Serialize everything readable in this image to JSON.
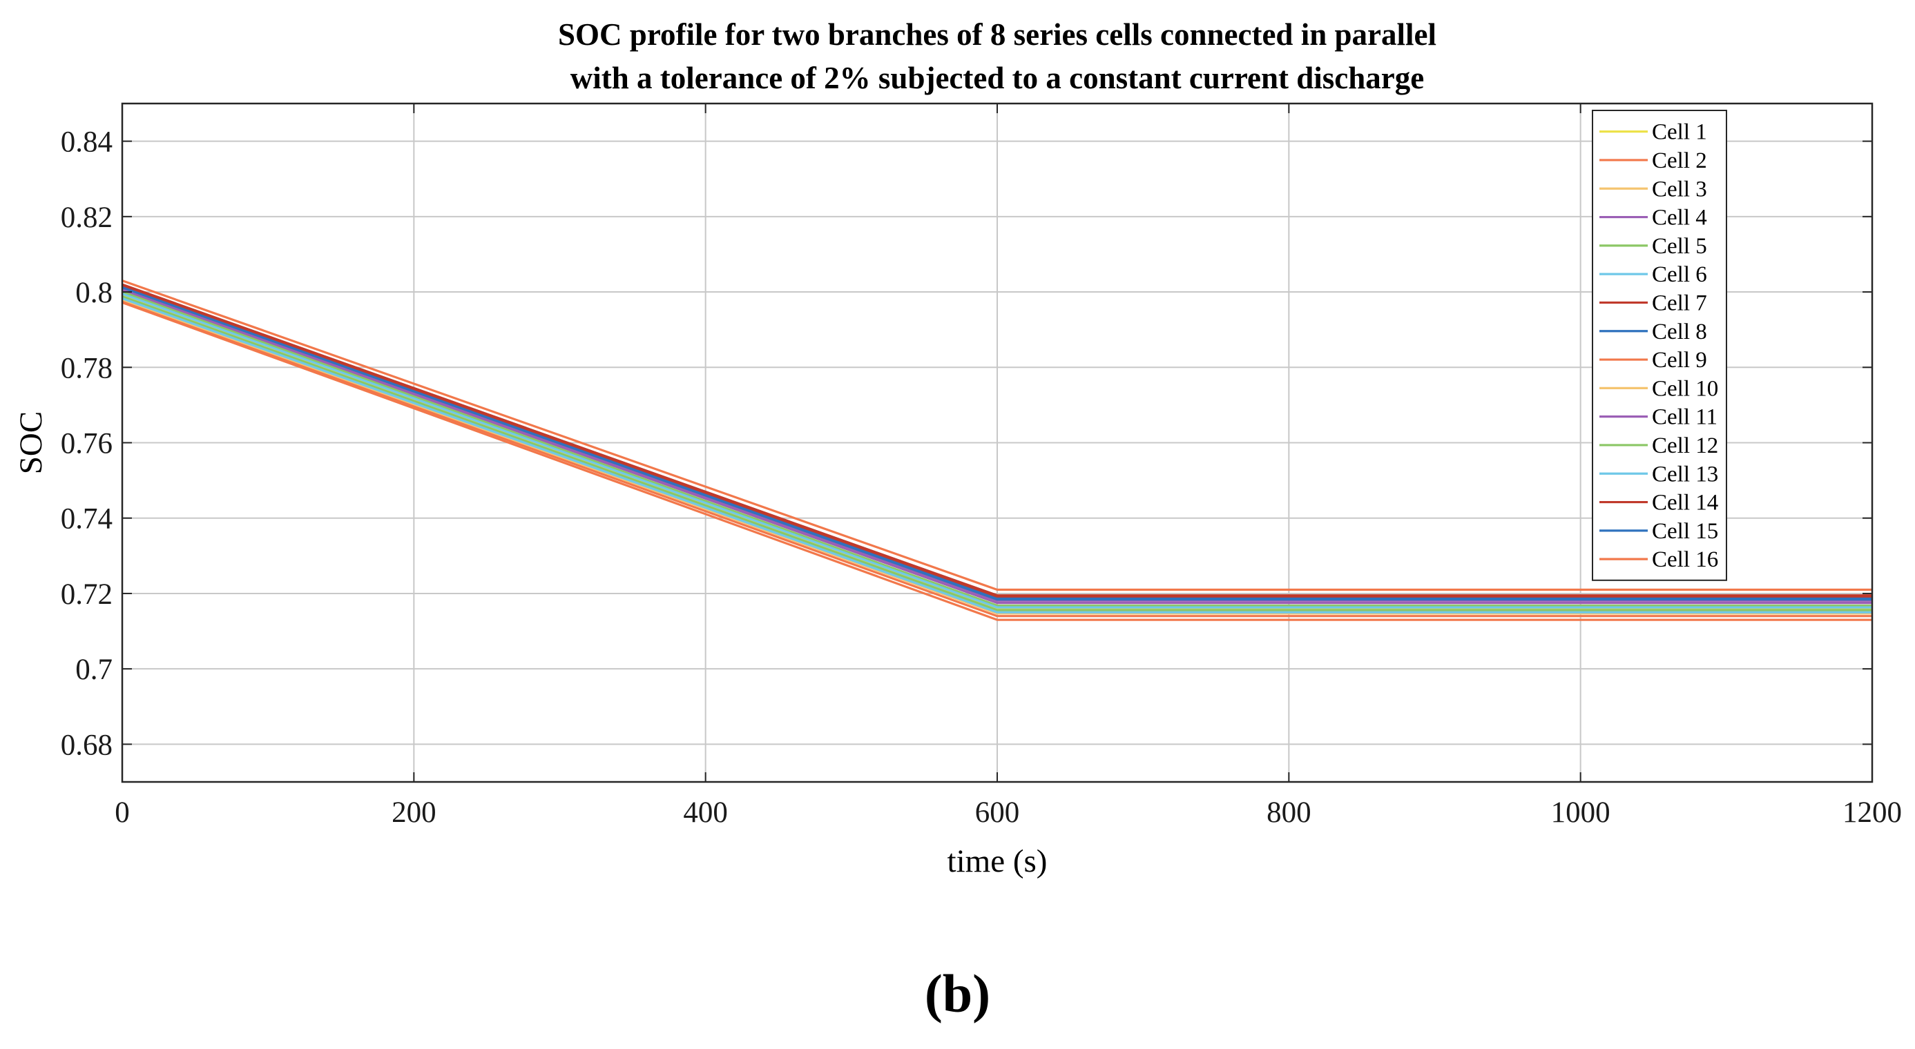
{
  "chart_data": {
    "type": "line",
    "title": [
      "SOC profile for two branches of 8 series cells connected in parallel",
      "with a tolerance of 2% subjected to a constant current discharge"
    ],
    "xlabel": "time (s)",
    "ylabel": "SOC",
    "xlim": [
      0,
      1200
    ],
    "ylim": [
      0.67,
      0.85
    ],
    "xticks": [
      0,
      200,
      400,
      600,
      800,
      1000,
      1200
    ],
    "xtick_labels": [
      "0",
      "200",
      "400",
      "600",
      "800",
      "1000",
      "1200"
    ],
    "yticks": [
      0.68,
      0.7,
      0.72,
      0.74,
      0.76,
      0.78,
      0.8,
      0.82,
      0.84
    ],
    "ytick_labels": [
      "0.68",
      "0.7",
      "0.72",
      "0.74",
      "0.76",
      "0.78",
      "0.8",
      "0.82",
      "0.84"
    ],
    "grid": true,
    "legend_position": "top-right",
    "series": [
      {
        "name": "Cell 1",
        "color": "#EDE24A",
        "x": [
          0,
          600,
          1200
        ],
        "y": [
          0.799,
          0.716,
          0.716
        ]
      },
      {
        "name": "Cell 2",
        "color": "#F2784B",
        "x": [
          0,
          600,
          1200
        ],
        "y": [
          0.7975,
          0.714,
          0.714
        ]
      },
      {
        "name": "Cell 3",
        "color": "#F5C470",
        "x": [
          0,
          600,
          1200
        ],
        "y": [
          0.7985,
          0.7152,
          0.7152
        ]
      },
      {
        "name": "Cell 4",
        "color": "#9B5FB5",
        "x": [
          0,
          600,
          1200
        ],
        "y": [
          0.8005,
          0.7175,
          0.7175
        ]
      },
      {
        "name": "Cell 5",
        "color": "#8BC765",
        "x": [
          0,
          600,
          1200
        ],
        "y": [
          0.8,
          0.7168,
          0.7168
        ]
      },
      {
        "name": "Cell 6",
        "color": "#6FC8E8",
        "x": [
          0,
          600,
          1200
        ],
        "y": [
          0.7995,
          0.7163,
          0.7163
        ]
      },
      {
        "name": "Cell 7",
        "color": "#C0392B",
        "x": [
          0,
          600,
          1200
        ],
        "y": [
          0.802,
          0.7195,
          0.7195
        ]
      },
      {
        "name": "Cell 8",
        "color": "#2F72BE",
        "x": [
          0,
          600,
          1200
        ],
        "y": [
          0.8015,
          0.7188,
          0.7188
        ]
      },
      {
        "name": "Cell 9",
        "color": "#F2784B",
        "x": [
          0,
          600,
          1200
        ],
        "y": [
          0.803,
          0.721,
          0.721
        ]
      },
      {
        "name": "Cell 10",
        "color": "#F5C470",
        "x": [
          0,
          600,
          1200
        ],
        "y": [
          0.798,
          0.7147,
          0.7147
        ]
      },
      {
        "name": "Cell 11",
        "color": "#9B5FB5",
        "x": [
          0,
          600,
          1200
        ],
        "y": [
          0.801,
          0.7181,
          0.7181
        ]
      },
      {
        "name": "Cell 12",
        "color": "#8BC765",
        "x": [
          0,
          600,
          1200
        ],
        "y": [
          0.7988,
          0.7156,
          0.7156
        ]
      },
      {
        "name": "Cell 13",
        "color": "#6FC8E8",
        "x": [
          0,
          600,
          1200
        ],
        "y": [
          0.7983,
          0.715,
          0.715
        ]
      },
      {
        "name": "Cell 14",
        "color": "#C0392B",
        "x": [
          0,
          600,
          1200
        ],
        "y": [
          0.8018,
          0.7192,
          0.7192
        ]
      },
      {
        "name": "Cell 15",
        "color": "#2F72BE",
        "x": [
          0,
          600,
          1200
        ],
        "y": [
          0.8012,
          0.7184,
          0.7184
        ]
      },
      {
        "name": "Cell 16",
        "color": "#F2784B",
        "x": [
          0,
          600,
          1200
        ],
        "y": [
          0.7972,
          0.713,
          0.713
        ]
      }
    ]
  },
  "panel_label": "(b)",
  "colors": {
    "grid": "#C8C8C8",
    "axis": "#262626",
    "background": "#FFFFFF"
  }
}
